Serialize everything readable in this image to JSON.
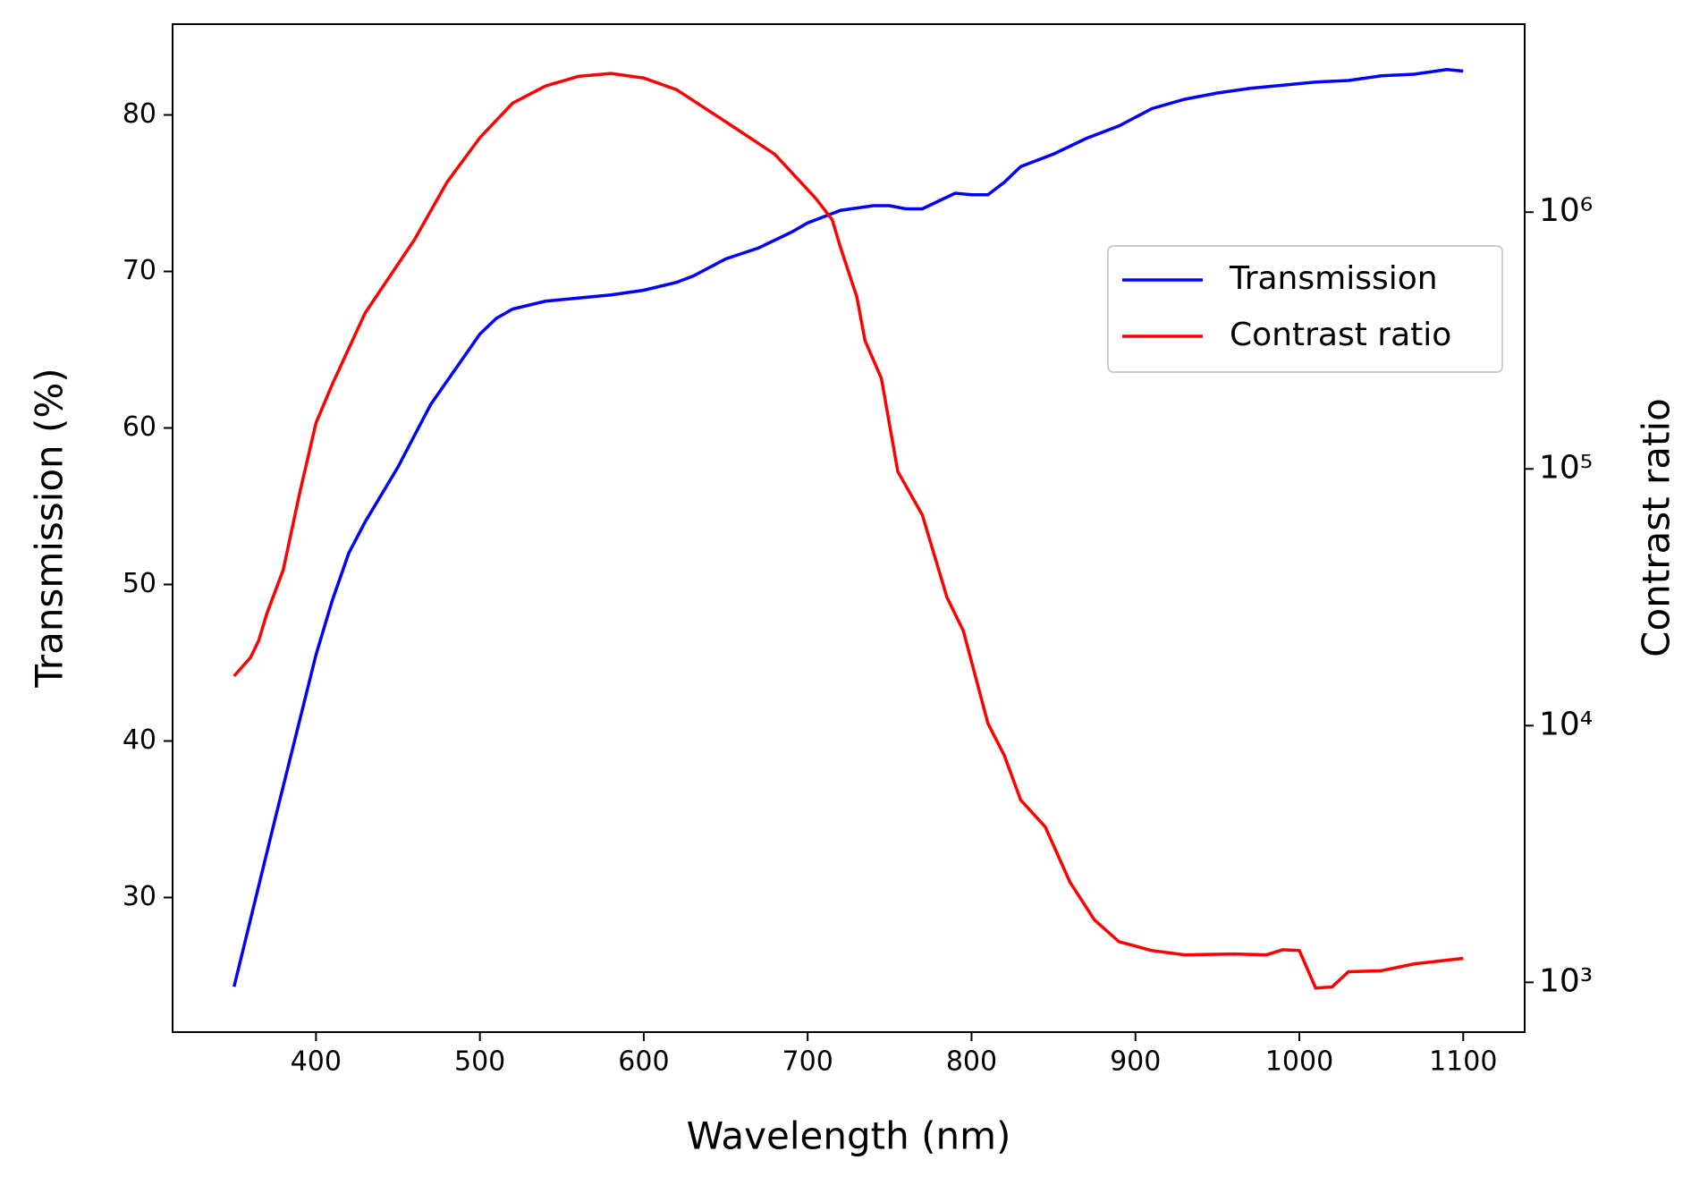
{
  "chart_data": {
    "type": "line",
    "xlabel": "Wavelength (nm)",
    "ylabel": "Transmission (%)",
    "y2label": "Contrast ratio",
    "xlim": [
      312.5,
      1137.5
    ],
    "xticks": [
      400,
      500,
      600,
      700,
      800,
      900,
      1000,
      1100
    ],
    "ylim": [
      21.4,
      85.8
    ],
    "yticks": [
      30,
      40,
      50,
      60,
      70,
      80
    ],
    "y2lim": [
      640,
      5400000
    ],
    "y2scale": "log",
    "y2ticks": [
      {
        "value": 1000,
        "label": "10³"
      },
      {
        "value": 10000,
        "label": "10⁴"
      },
      {
        "value": 100000,
        "label": "10⁵"
      },
      {
        "value": 1000000,
        "label": "10⁶"
      }
    ],
    "legend": "center right",
    "grid": false,
    "series": [
      {
        "name": "Transmission",
        "color": "#0000ff",
        "x": [
          350,
          375,
          400,
          410,
          420,
          430,
          450,
          470,
          490,
          500,
          510,
          520,
          540,
          560,
          580,
          600,
          620,
          630,
          650,
          670,
          690,
          700,
          720,
          740,
          750,
          760,
          770,
          780,
          790,
          800,
          810,
          820,
          830,
          850,
          870,
          890,
          910,
          930,
          950,
          970,
          990,
          1010,
          1030,
          1050,
          1070,
          1090,
          1100
        ],
        "values": [
          24.3,
          35,
          45.5,
          49,
          52,
          54,
          57.5,
          61.5,
          64.5,
          66,
          67,
          67.6,
          68.1,
          68.3,
          68.5,
          68.8,
          69.3,
          69.7,
          70.8,
          71.5,
          72.5,
          73.1,
          73.9,
          74.2,
          74.2,
          74.0,
          74.0,
          74.5,
          75.0,
          74.9,
          74.9,
          75.7,
          76.7,
          77.5,
          78.5,
          79.3,
          80.4,
          81.0,
          81.4,
          81.7,
          81.9,
          82.1,
          82.2,
          82.5,
          82.6,
          82.9,
          82.8
        ]
      },
      {
        "name": "Contrast ratio",
        "color": "#ff0000",
        "axis": "y2",
        "x": [
          350,
          360,
          365,
          370,
          380,
          390,
          400,
          410,
          430,
          460,
          480,
          500,
          520,
          540,
          560,
          580,
          600,
          620,
          650,
          680,
          705,
          715,
          720,
          730,
          735,
          745,
          755,
          770,
          785,
          795,
          810,
          820,
          830,
          845,
          860,
          875,
          890,
          910,
          930,
          960,
          980,
          990,
          1000,
          1010,
          1020,
          1030,
          1050,
          1070,
          1100
        ],
        "values": [
          15600,
          18400,
          21400,
          27300,
          40400,
          80300,
          151000,
          214000,
          405000,
          780000,
          1310000,
          1950000,
          2660000,
          3100000,
          3380000,
          3470000,
          3330000,
          3000000,
          2250000,
          1680000,
          1130000,
          934000,
          730000,
          468000,
          316000,
          225000,
          97700,
          66100,
          31600,
          23400,
          10200,
          7650,
          5130,
          4030,
          2460,
          1750,
          1440,
          1330,
          1280,
          1290,
          1280,
          1340,
          1330,
          950,
          960,
          1100,
          1110,
          1180,
          1240
        ]
      }
    ]
  }
}
